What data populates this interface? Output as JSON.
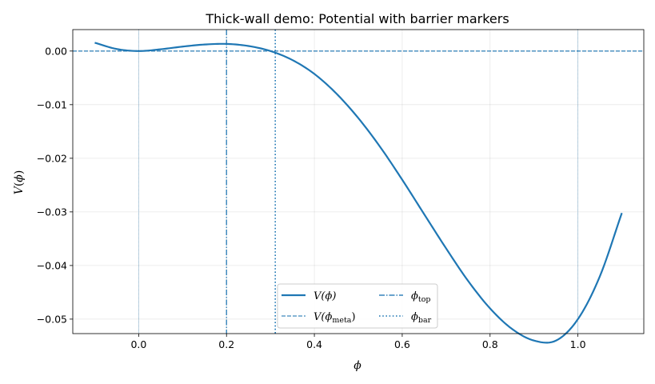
{
  "chart_data": {
    "type": "line",
    "title": "Thick-wall demo: Potential with barrier markers",
    "xlabel": "ϕ",
    "ylabel_main": "V",
    "ylabel_arg": "ϕ",
    "xlim": [
      -0.15,
      1.15
    ],
    "ylim": [
      -0.0527,
      0.004
    ],
    "xticks": [
      0.0,
      0.2,
      0.4,
      0.6,
      0.8,
      1.0
    ],
    "xtick_labels": [
      "0.0",
      "0.2",
      "0.4",
      "0.6",
      "0.8",
      "1.0"
    ],
    "yticks": [
      0.0,
      -0.01,
      -0.02,
      -0.03,
      -0.04,
      -0.05
    ],
    "ytick_labels": [
      "0.00",
      "−0.01",
      "−0.02",
      "−0.03",
      "−0.04",
      "−0.05"
    ],
    "grid": true,
    "series": [
      {
        "name": "V(ϕ)",
        "x": [
          -0.1,
          -0.05,
          0.0,
          0.05,
          0.1,
          0.15,
          0.2,
          0.25,
          0.3,
          0.35,
          0.4,
          0.45,
          0.5,
          0.55,
          0.6,
          0.65,
          0.7,
          0.75,
          0.8,
          0.85,
          0.9,
          0.95,
          1.0,
          1.05,
          1.1
        ],
        "y": [
          0.00155,
          0.00038,
          0.0,
          0.00033,
          0.00083,
          0.00122,
          0.00133,
          0.00094,
          0.0,
          -0.00168,
          -0.00427,
          -0.00792,
          -0.0125,
          -0.01791,
          -0.024,
          -0.03043,
          -0.03682,
          -0.04287,
          -0.048,
          -0.05183,
          -0.054,
          -0.05401,
          -0.05,
          -0.042,
          -0.0302
        ]
      }
    ],
    "markers": {
      "v_meta": 0.0,
      "phi_top": 0.2,
      "phi_bar": 0.311,
      "phi_false_vacuum": 0.0,
      "phi_true_vacuum": 1.0
    },
    "legend": {
      "placement": "lower-center",
      "entries": [
        {
          "main": "V(ϕ)",
          "sub": "",
          "tail": "",
          "style": "solid"
        },
        {
          "main": "V(ϕ",
          "sub": "meta",
          "tail": ")",
          "style": "dashed"
        },
        {
          "main": "ϕ",
          "sub": "top",
          "tail": "",
          "style": "dashdot"
        },
        {
          "main": "ϕ",
          "sub": "bar",
          "tail": "",
          "style": "dotted"
        }
      ]
    },
    "color": "#1f77b4"
  }
}
